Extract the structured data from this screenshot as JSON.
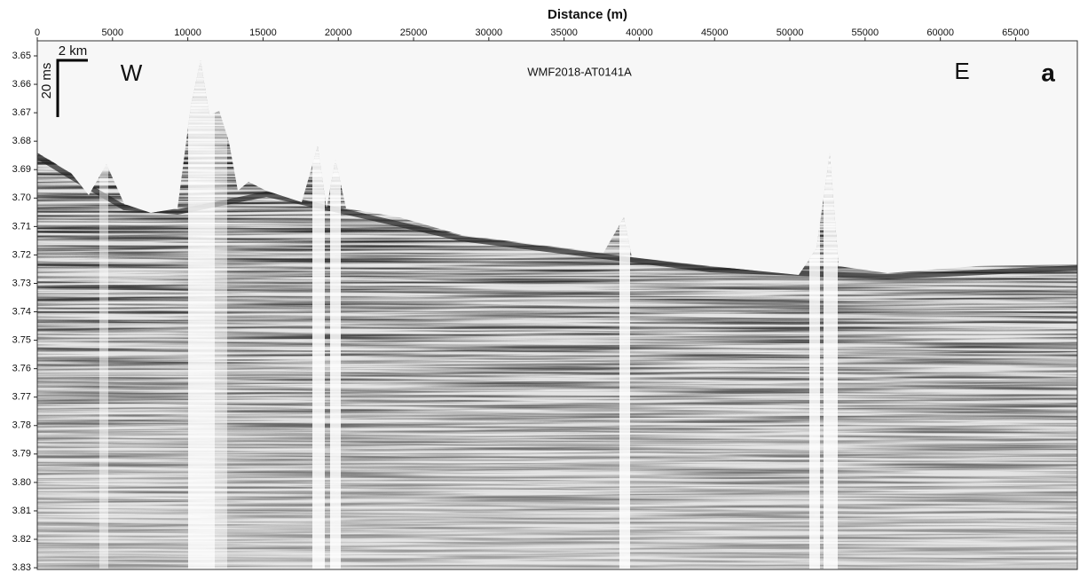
{
  "chart_data": {
    "type": "image",
    "title": "Distance (m)",
    "xlim": [
      0,
      69100
    ],
    "xticks": [
      0,
      5000,
      10000,
      15000,
      20000,
      25000,
      30000,
      35000,
      40000,
      45000,
      50000,
      55000,
      60000,
      65000
    ],
    "ylim": [
      3.6447,
      3.8306
    ],
    "yticks": [
      3.65,
      3.66,
      3.67,
      3.68,
      3.69,
      {
        "value": 3.7,
        "label": "3.70"
      },
      3.71,
      3.72,
      3.73,
      3.74,
      3.75,
      3.76,
      3.77,
      3.78,
      3.79,
      {
        "value": 3.8,
        "label": "3.80"
      },
      3.81,
      3.82,
      3.83
    ],
    "profile_name": "WMF2018-AT0141A",
    "west_label": "W",
    "east_label": "E",
    "panel_label": "a",
    "scale_x_label": "2 km",
    "scale_y_label": "20 ms"
  }
}
